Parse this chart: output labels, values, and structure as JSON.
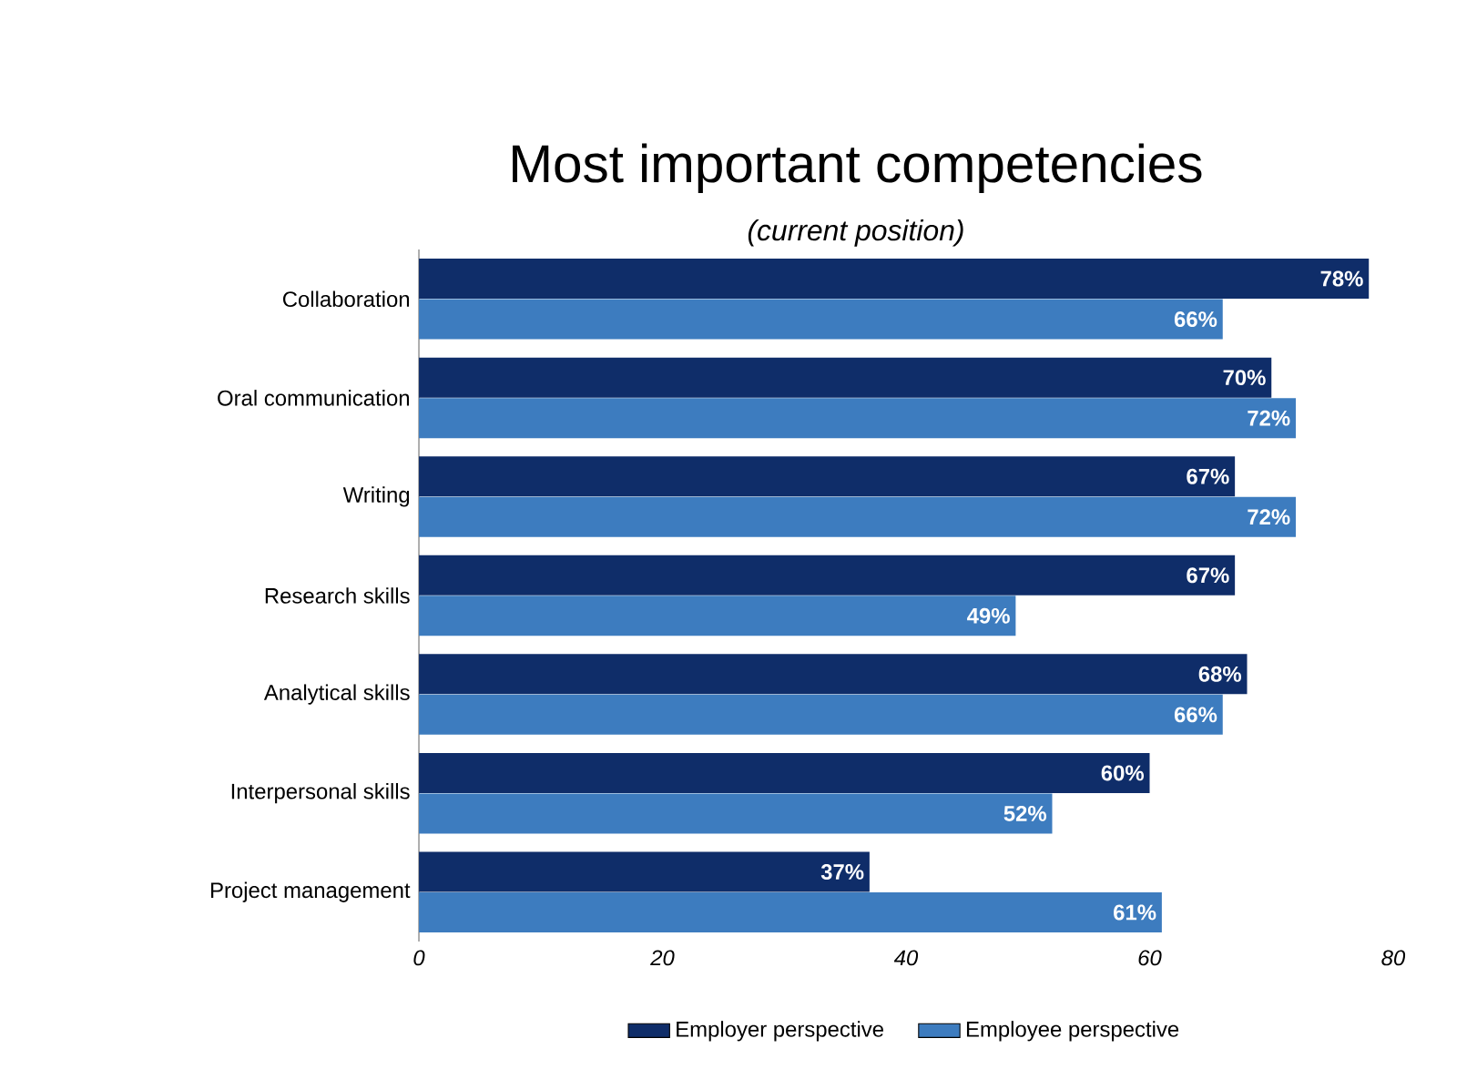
{
  "chart_data": {
    "type": "bar",
    "orientation": "horizontal",
    "title": "Most important competencies",
    "subtitle": "(current position)",
    "categories": [
      "Collaboration",
      "Oral communication",
      "Writing",
      "Research skills",
      "Analytical skills",
      "Interpersonal skills",
      "Project management"
    ],
    "series": [
      {
        "name": "Employer perspective",
        "color": "#0f2d69",
        "values": [
          78,
          70,
          67,
          67,
          68,
          60,
          37
        ],
        "value_labels": [
          "78%",
          "70%",
          "67%",
          "67%",
          "68%",
          "60%",
          "37%"
        ]
      },
      {
        "name": "Employee perspective",
        "color": "#3d7cbf",
        "values": [
          66,
          72,
          72,
          49,
          66,
          52,
          61
        ],
        "value_labels": [
          "66%",
          "72%",
          "72%",
          "49%",
          "66%",
          "52%",
          "61%"
        ]
      }
    ],
    "xlim": [
      0,
      80
    ],
    "xticks": [
      0,
      20,
      40,
      60,
      80
    ],
    "grid": false,
    "legend": "bottom"
  }
}
